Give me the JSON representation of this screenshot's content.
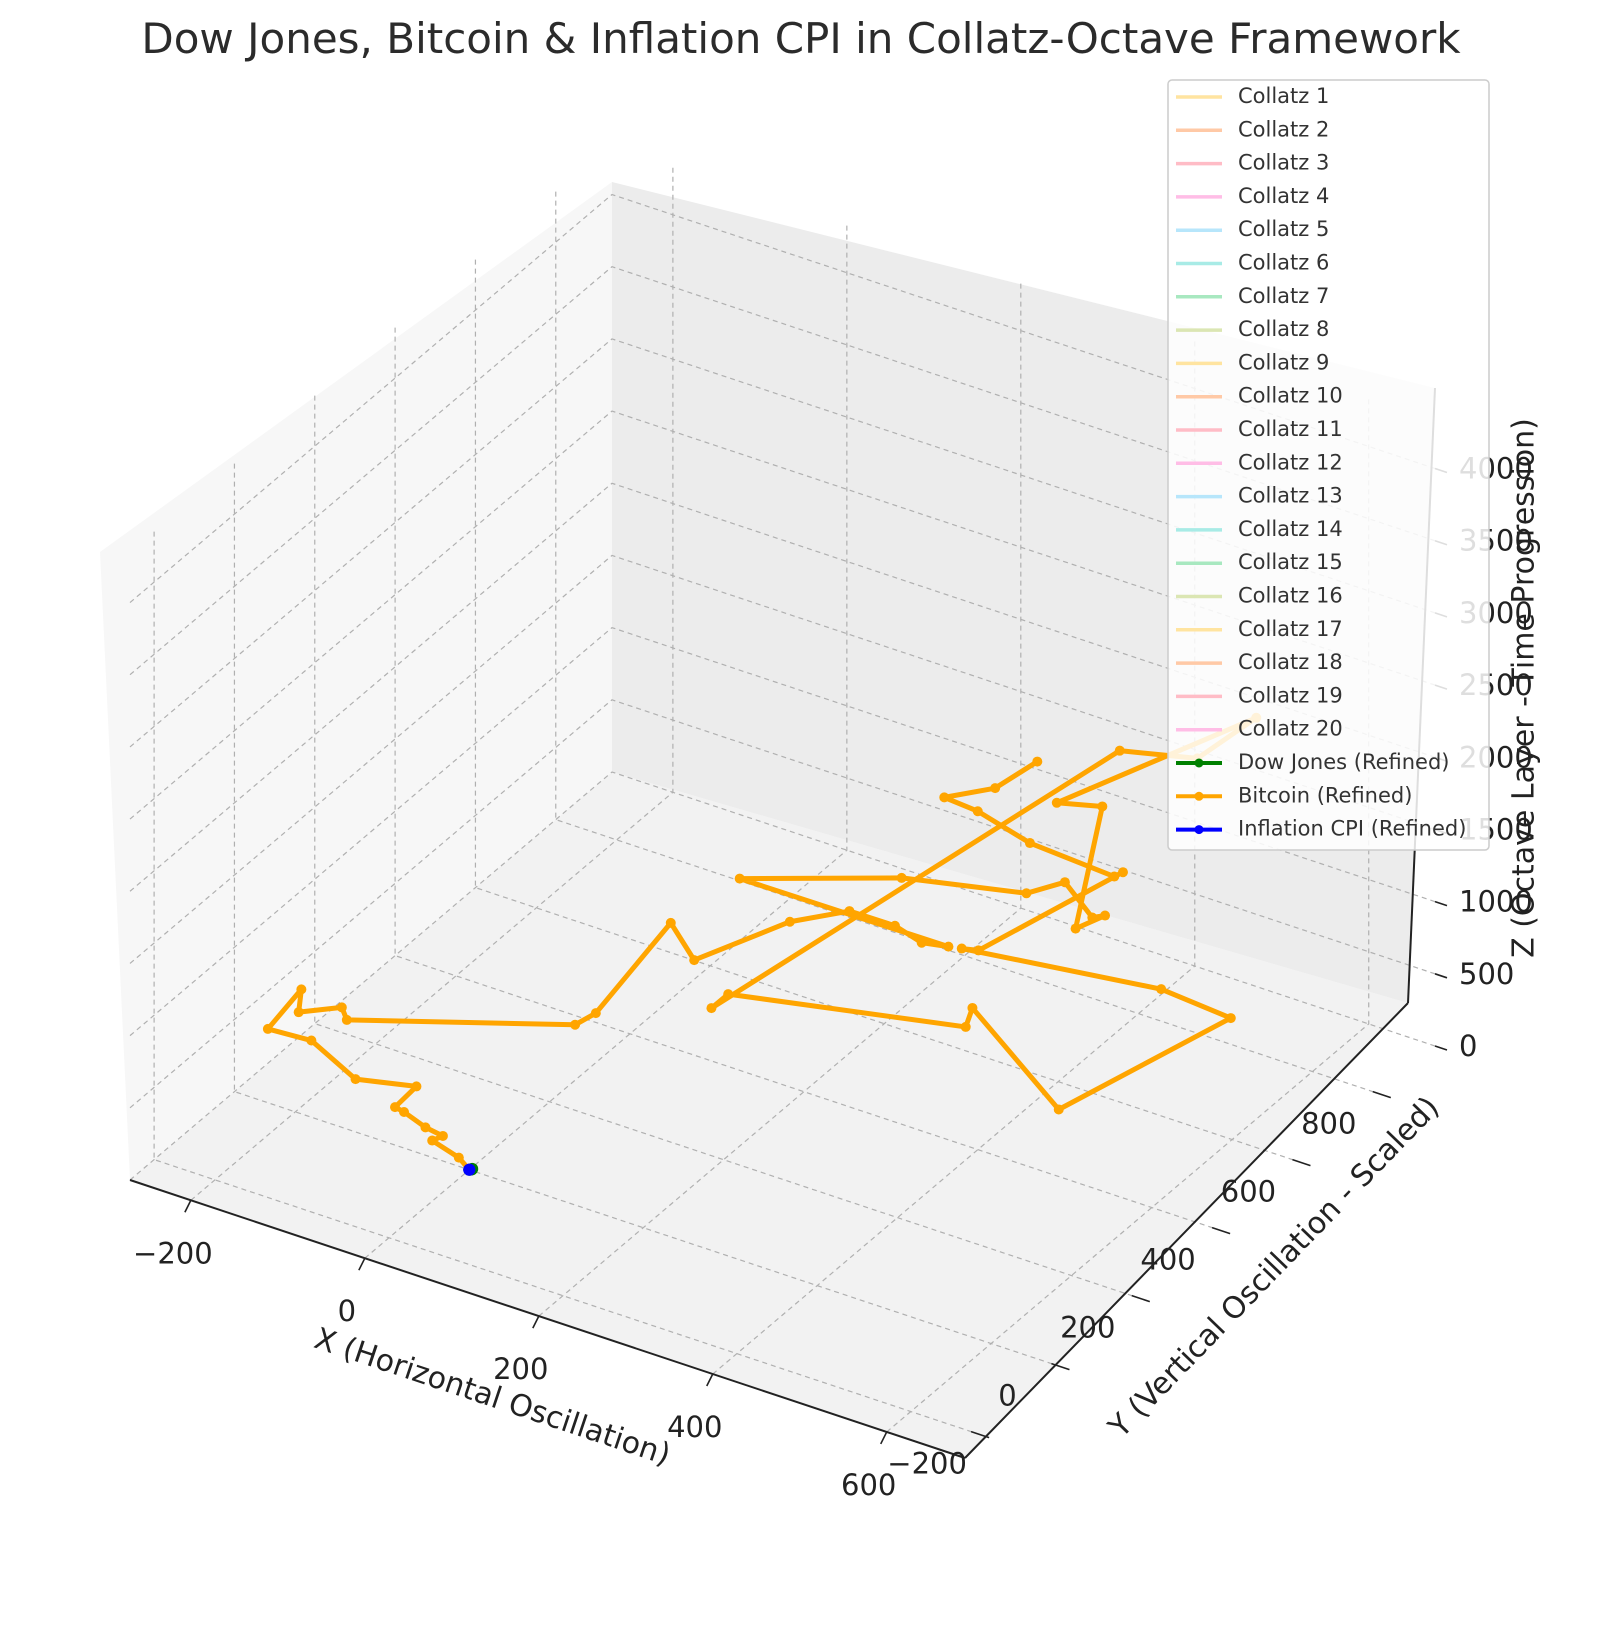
{
  "chart_data": {
    "type": "line",
    "projection": "3d",
    "title": "Dow Jones, Bitcoin & Inflation CPI in Collatz-Octave Framework",
    "xlabel": "X (Horizontal Oscillation)",
    "ylabel": "Y (Vertical Oscillation - Scaled)",
    "zlabel": "Z (Octave Layer - Time Progression)",
    "x_ticks": [
      "−200",
      "0",
      "200",
      "400",
      "600"
    ],
    "y_ticks": [
      "−200",
      "0",
      "200",
      "400",
      "600",
      "800"
    ],
    "z_ticks": [
      "0",
      "500",
      "1000",
      "1500",
      "2000",
      "2500",
      "3000",
      "3500",
      "4000"
    ],
    "grid": true,
    "legend_position": "top-right",
    "collatz_legend": [
      {
        "label": "Collatz 1",
        "color": "#ffe4a0"
      },
      {
        "label": "Collatz 2",
        "color": "#ffc9a6"
      },
      {
        "label": "Collatz 3",
        "color": "#ffbcc6"
      },
      {
        "label": "Collatz 4",
        "color": "#ffbde6"
      },
      {
        "label": "Collatz 5",
        "color": "#b7e6fb"
      },
      {
        "label": "Collatz 6",
        "color": "#a8ebe6"
      },
      {
        "label": "Collatz 7",
        "color": "#a8e8c0"
      },
      {
        "label": "Collatz 8",
        "color": "#dbe6b3"
      },
      {
        "label": "Collatz 9",
        "color": "#ffe4a0"
      },
      {
        "label": "Collatz 10",
        "color": "#ffc9a6"
      },
      {
        "label": "Collatz 11",
        "color": "#ffbcc6"
      },
      {
        "label": "Collatz 12",
        "color": "#ffbde6"
      },
      {
        "label": "Collatz 13",
        "color": "#b7e6fb"
      },
      {
        "label": "Collatz 14",
        "color": "#a8ebe6"
      },
      {
        "label": "Collatz 15",
        "color": "#a8e8c0"
      },
      {
        "label": "Collatz 16",
        "color": "#dbe6b3"
      },
      {
        "label": "Collatz 17",
        "color": "#ffe4a0"
      },
      {
        "label": "Collatz 18",
        "color": "#ffc9a6"
      },
      {
        "label": "Collatz 19",
        "color": "#ffbcc6"
      },
      {
        "label": "Collatz 20",
        "color": "#ffbde6"
      }
    ],
    "series": [
      {
        "name": "Dow Jones (Refined)",
        "color": "#008000",
        "x": [
          0,
          1,
          2,
          2
        ],
        "y": [
          0,
          1,
          2,
          3
        ],
        "z": [
          0,
          1,
          2,
          3
        ]
      },
      {
        "name": "Bitcoin (Refined)",
        "color": "#ffa500",
        "x": [
          0,
          -12,
          -38,
          -28,
          -55,
          -75,
          -90,
          -70,
          -140,
          -200,
          -250,
          -230,
          -210,
          -165,
          -150,
          -40,
          -30,
          10,
          60,
          110,
          160,
          240,
          280,
          320,
          80,
          220,
          345,
          380,
          430,
          440,
          420,
          520,
          500,
          600,
          560,
          480,
          380,
          390,
          580,
          560,
          650,
          700,
          620,
          520,
          530,
          770,
          760,
          700,
          640,
          620,
          660,
          690
        ],
        "y": [
          0,
          0,
          -10,
          -5,
          10,
          0,
          10,
          20,
          20,
          40,
          40,
          80,
          30,
          40,
          20,
          350,
          380,
          480,
          430,
          560,
          600,
          540,
          520,
          500,
          500,
          600,
          640,
          660,
          620,
          630,
          600,
          450,
          380,
          660,
          600,
          580,
          -220,
          -200,
          -20,
          40,
          60,
          380,
          380,
          100,
          120,
          -40,
          -40,
          -120,
          -120,
          -160,
          -120,
          -80
        ],
        "z": [
          0,
          60,
          150,
          190,
          160,
          250,
          230,
          390,
          300,
          400,
          380,
          600,
          600,
          700,
          690,
          100,
          130,
          600,
          560,
          620,
          700,
          900,
          910,
          1010,
          1000,
          1050,
          1100,
          1200,
          1150,
          1160,
          1100,
          2500,
          2650,
          2780,
          2560,
          2500,
          2400,
          2470,
          2200,
          2150,
          1580,
          1560,
          1600,
          2340,
          2300,
          3700,
          3650,
          3950,
          4050,
          4200,
          4250,
          4400
        ]
      },
      {
        "name": "Inflation CPI (Refined)",
        "color": "#0000ff",
        "x": [
          0,
          0
        ],
        "y": [
          0,
          0
        ],
        "z": [
          0,
          1
        ]
      }
    ],
    "xlim": [
      -270,
      690
    ],
    "ylim": [
      -260,
      940
    ],
    "zlim": [
      0,
      4350
    ]
  }
}
